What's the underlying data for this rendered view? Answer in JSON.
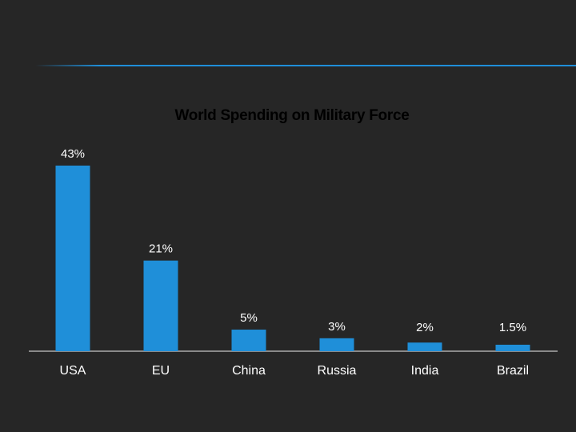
{
  "colors": {
    "background": "#262626",
    "bar": "#1f8fd9",
    "axis": "#8a8a8a",
    "accent_line": "#1f8fd9",
    "title": "#000000",
    "text": "#ffffff"
  },
  "chart_data": {
    "type": "bar",
    "title": "World Spending on Military Force",
    "categories": [
      "USA",
      "EU",
      "China",
      "Russia",
      "India",
      "Brazil"
    ],
    "values": [
      43,
      21,
      5,
      3,
      2,
      1.5
    ],
    "data_labels": [
      "43%",
      "21%",
      "5%",
      "3%",
      "2%",
      "1.5%"
    ],
    "xlabel": "",
    "ylabel": "",
    "ylim": [
      0,
      43
    ],
    "grid": false,
    "legend": "none"
  }
}
